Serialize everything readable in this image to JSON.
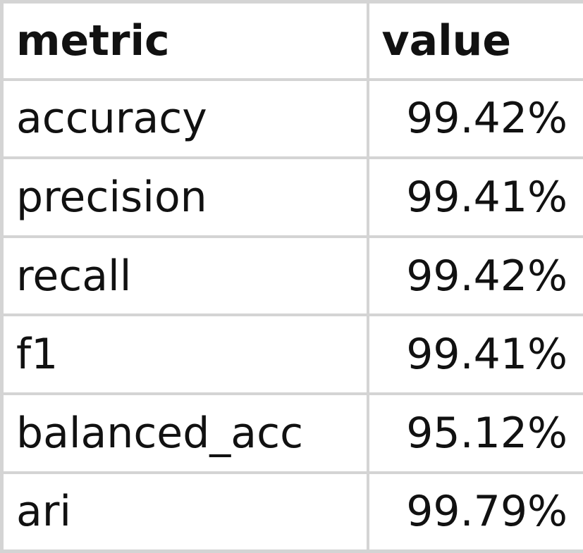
{
  "table": {
    "headers": {
      "metric": "metric",
      "value": "value"
    },
    "rows": [
      {
        "metric": "accuracy",
        "value": "99.42%"
      },
      {
        "metric": "precision",
        "value": "99.41%"
      },
      {
        "metric": "recall",
        "value": "99.42%"
      },
      {
        "metric": "f1",
        "value": "99.41%"
      },
      {
        "metric": "balanced_acc",
        "value": "95.12%"
      },
      {
        "metric": "ari",
        "value": "99.79%"
      }
    ]
  },
  "colors": {
    "grid": "#d4d4d4",
    "text": "#111111",
    "background": "#ffffff"
  }
}
